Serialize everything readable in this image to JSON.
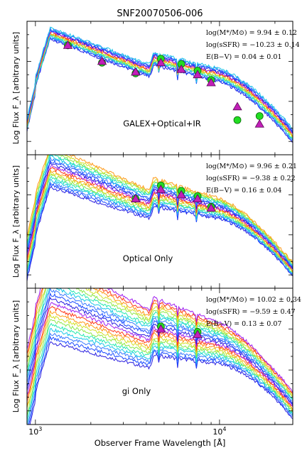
{
  "figure": {
    "title": "SNF20070506-006",
    "xlabel": "Observer Frame Wavelength [Å]",
    "ylabel": "Log Flux F_λ [arbitrary units]"
  },
  "chart_data": [
    {
      "type": "line",
      "panel_label": "GALEX+Optical+IR",
      "stats": [
        "log(M*/M⊙) = 9.94 ± 0.12",
        "log(sSFR) = −10.23 ± 0.14",
        "E(B−V) = 0.04 ± 0.01"
      ],
      "xscale": "log",
      "xlim": [
        900,
        25000
      ],
      "ylim": [
        0.0,
        1.0
      ],
      "n_models": 14,
      "obs_points": [
        {
          "x": 1500,
          "y": 0.82
        },
        {
          "x": 2300,
          "y": 0.69
        },
        {
          "x": 3500,
          "y": 0.61
        },
        {
          "x": 4800,
          "y": 0.72
        },
        {
          "x": 6200,
          "y": 0.68
        },
        {
          "x": 7600,
          "y": 0.63
        },
        {
          "x": 9000,
          "y": 0.56
        },
        {
          "x": 12500,
          "y": 0.26
        },
        {
          "x": 16500,
          "y": 0.29
        }
      ],
      "model_points": [
        {
          "x": 1500,
          "y": 0.82
        },
        {
          "x": 2300,
          "y": 0.7
        },
        {
          "x": 3500,
          "y": 0.62
        },
        {
          "x": 4800,
          "y": 0.69
        },
        {
          "x": 6200,
          "y": 0.64
        },
        {
          "x": 7600,
          "y": 0.6
        },
        {
          "x": 9000,
          "y": 0.54
        },
        {
          "x": 12500,
          "y": 0.36
        },
        {
          "x": 16500,
          "y": 0.23
        }
      ]
    },
    {
      "type": "line",
      "panel_label": "Optical Only",
      "stats": [
        "log(M*/M⊙) = 9.96 ± 0.21",
        "log(sSFR) = −9.38 ± 0.22",
        "E(B−V) = 0.16 ± 0.04"
      ],
      "xscale": "log",
      "xlim": [
        900,
        25000
      ],
      "ylim": [
        0.0,
        1.0
      ],
      "n_models": 18,
      "obs_points": [
        {
          "x": 3500,
          "y": 0.67
        },
        {
          "x": 4800,
          "y": 0.77
        },
        {
          "x": 6200,
          "y": 0.73
        },
        {
          "x": 7600,
          "y": 0.69
        },
        {
          "x": 9000,
          "y": 0.61
        }
      ],
      "model_points": [
        {
          "x": 3500,
          "y": 0.67
        },
        {
          "x": 4800,
          "y": 0.74
        },
        {
          "x": 6200,
          "y": 0.7
        },
        {
          "x": 7600,
          "y": 0.67
        },
        {
          "x": 9000,
          "y": 0.6
        }
      ]
    },
    {
      "type": "line",
      "panel_label": "gi Only",
      "stats": [
        "log(M*/M⊙) = 10.02 ± 0.34",
        "log(sSFR) = −9.59 ± 0.47",
        "E(B−V) = 0.13 ± 0.07"
      ],
      "xscale": "log",
      "xlim": [
        900,
        25000
      ],
      "ylim": [
        0.0,
        1.0
      ],
      "n_models": 20,
      "obs_points": [
        {
          "x": 4800,
          "y": 0.72
        },
        {
          "x": 7600,
          "y": 0.68
        }
      ],
      "model_points": [
        {
          "x": 4800,
          "y": 0.7
        },
        {
          "x": 7600,
          "y": 0.66
        }
      ]
    }
  ],
  "x_ticks": [
    {
      "value": 1000,
      "label": "10^3"
    },
    {
      "value": 10000,
      "label": "10^4"
    }
  ],
  "colors": {
    "observed": "#22dd22",
    "model": "#c21fb8",
    "model_lines": [
      "#2a1fe0",
      "#1b4bff",
      "#3a7bff",
      "#19c7e8",
      "#28e8b0",
      "#8de84a",
      "#d4e02a",
      "#ff9a1a",
      "#ff3a1a",
      "#a020f0"
    ]
  }
}
